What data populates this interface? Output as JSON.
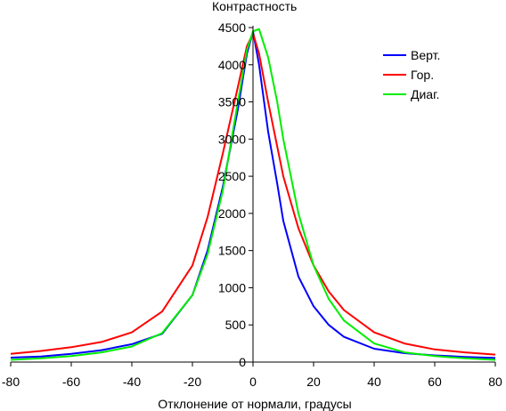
{
  "chart_data": {
    "type": "line",
    "ylabel": "Контрастность",
    "xlabel": "Отклонение от нормали, градусы",
    "xlim": [
      -80,
      80
    ],
    "ylim": [
      0,
      4500
    ],
    "x_ticks": [
      -80,
      -60,
      -40,
      -20,
      0,
      20,
      40,
      60,
      80
    ],
    "y_ticks": [
      0,
      500,
      1000,
      1500,
      2000,
      2500,
      3000,
      3500,
      4000,
      4500
    ],
    "grid": false,
    "legend_position": "top-right",
    "series": [
      {
        "name": "Верт.",
        "color": "#0000ff",
        "x": [
          -80,
          -70,
          -60,
          -50,
          -40,
          -30,
          -20,
          -15,
          -10,
          -5,
          -2,
          0,
          2,
          5,
          8,
          10,
          15,
          20,
          25,
          30,
          40,
          50,
          60,
          70,
          80
        ],
        "y": [
          60,
          75,
          110,
          160,
          240,
          380,
          900,
          1500,
          2350,
          3400,
          4150,
          4450,
          4000,
          3100,
          2400,
          1900,
          1150,
          750,
          500,
          340,
          180,
          120,
          90,
          70,
          55
        ]
      },
      {
        "name": "Гор.",
        "color": "#ff0000",
        "x": [
          -80,
          -70,
          -60,
          -50,
          -40,
          -30,
          -20,
          -15,
          -10,
          -5,
          -2,
          0,
          2,
          5,
          8,
          10,
          15,
          20,
          25,
          30,
          40,
          50,
          60,
          70,
          80
        ],
        "y": [
          110,
          150,
          200,
          270,
          400,
          680,
          1300,
          1950,
          2800,
          3700,
          4250,
          4420,
          4150,
          3500,
          2900,
          2500,
          1800,
          1300,
          950,
          700,
          400,
          250,
          170,
          130,
          100
        ]
      },
      {
        "name": "Диаг.",
        "color": "#00ee00",
        "x": [
          -80,
          -70,
          -60,
          -50,
          -40,
          -30,
          -20,
          -15,
          -10,
          -5,
          -2,
          0,
          2,
          5,
          8,
          10,
          15,
          20,
          25,
          30,
          40,
          50,
          60,
          70,
          80
        ],
        "y": [
          30,
          50,
          80,
          130,
          210,
          390,
          900,
          1450,
          2300,
          3500,
          4200,
          4450,
          4480,
          4100,
          3500,
          3000,
          2000,
          1300,
          850,
          560,
          250,
          130,
          80,
          50,
          30
        ]
      }
    ]
  }
}
